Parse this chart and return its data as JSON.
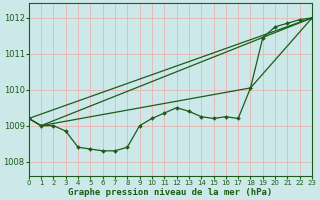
{
  "title": "Graphe pression niveau de la mer (hPa)",
  "background_color": "#cce8e8",
  "grid_color": "#e8b4b4",
  "line_color": "#1a5c1a",
  "xlim": [
    0,
    23
  ],
  "ylim": [
    1007.6,
    1012.4
  ],
  "yticks": [
    1008,
    1009,
    1010,
    1011,
    1012
  ],
  "xticks": [
    0,
    1,
    2,
    3,
    4,
    5,
    6,
    7,
    8,
    9,
    10,
    11,
    12,
    13,
    14,
    15,
    16,
    17,
    18,
    19,
    20,
    21,
    22,
    23
  ],
  "series_main": [
    [
      0,
      1009.2
    ],
    [
      1,
      1009.0
    ],
    [
      2,
      1009.0
    ],
    [
      3,
      1008.85
    ],
    [
      4,
      1008.4
    ],
    [
      5,
      1008.35
    ],
    [
      6,
      1008.3
    ],
    [
      7,
      1008.3
    ],
    [
      8,
      1008.4
    ],
    [
      9,
      1009.0
    ],
    [
      10,
      1009.2
    ],
    [
      11,
      1009.35
    ],
    [
      12,
      1009.5
    ],
    [
      13,
      1009.4
    ],
    [
      14,
      1009.25
    ],
    [
      15,
      1009.2
    ],
    [
      16,
      1009.25
    ],
    [
      17,
      1009.2
    ],
    [
      18,
      1010.05
    ],
    [
      19,
      1011.45
    ],
    [
      20,
      1011.75
    ],
    [
      21,
      1011.85
    ],
    [
      22,
      1011.95
    ],
    [
      23,
      1012.0
    ]
  ],
  "line_straight": [
    [
      0,
      1009.2
    ],
    [
      23,
      1012.0
    ]
  ],
  "line_upper_env": [
    [
      0,
      1009.2
    ],
    [
      1,
      1009.0
    ],
    [
      23,
      1012.0
    ]
  ],
  "line_lower_env": [
    [
      0,
      1009.2
    ],
    [
      1,
      1009.0
    ],
    [
      18,
      1010.05
    ],
    [
      23,
      1012.0
    ]
  ]
}
